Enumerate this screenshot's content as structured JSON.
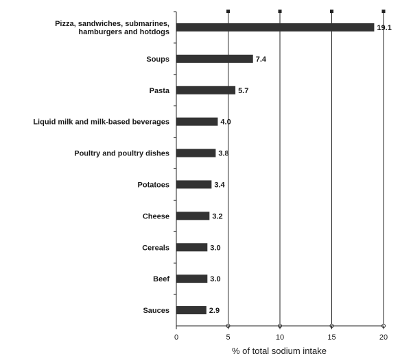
{
  "chart_data": {
    "type": "bar",
    "orientation": "horizontal",
    "categories": [
      [
        "Pizza, sandwiches, submarines,",
        "hamburgers and hotdogs"
      ],
      [
        "Soups"
      ],
      [
        "Pasta"
      ],
      [
        "Liquid milk and milk-based beverages"
      ],
      [
        "Poultry and poultry dishes"
      ],
      [
        "Potatoes"
      ],
      [
        "Cheese"
      ],
      [
        "Cereals"
      ],
      [
        "Beef"
      ],
      [
        "Sauces"
      ]
    ],
    "values": [
      19.1,
      7.4,
      5.7,
      4.0,
      3.8,
      3.4,
      3.2,
      3.0,
      3.0,
      2.9
    ],
    "value_labels": [
      "19.1",
      "7.4",
      "5.7",
      "4.0",
      "3.8",
      "3.4",
      "3.2",
      "3.0",
      "3.0",
      "2.9"
    ],
    "xlabel": "% of total sodium intake",
    "xlim": [
      0,
      20
    ],
    "xticks": [
      0,
      5,
      10,
      15,
      20
    ],
    "xtick_labels": [
      "0",
      "5",
      "10",
      "15",
      "20"
    ],
    "grid": "vertical",
    "legend": "none",
    "colors": {
      "bar": "#333333",
      "grid": "#222222",
      "text": "#1a1a1a"
    }
  }
}
